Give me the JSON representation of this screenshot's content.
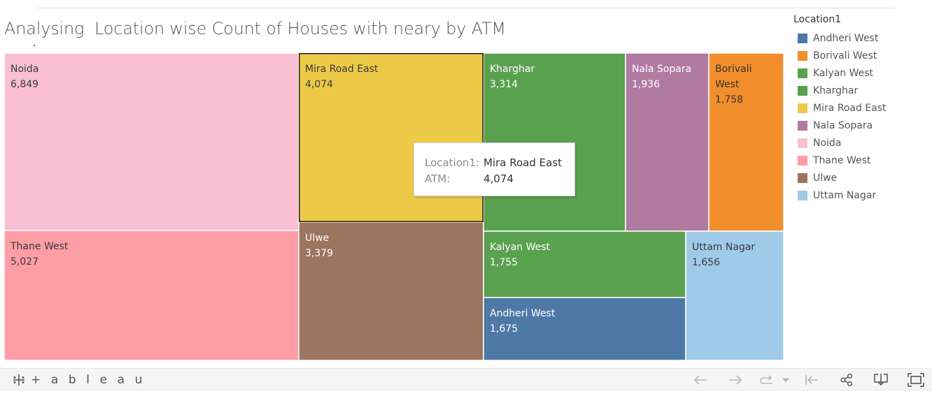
{
  "title": "Analysing  Location wise Count of Houses with neary by ATM",
  "colors": {
    "Andheri West": "#4e79a7",
    "Borivali West": "#f28e2b",
    "Kalyan West": "#59a14f",
    "Kharghar": "#59a14f",
    "Mira Road East": "#edc948",
    "Nala Sopara": "#b07aa1",
    "Noida": "#f9bfd3",
    "Thane West": "#ff9da7",
    "Ulwe": "#9c755f",
    "Uttam Nagar": "#a0cbe8"
  },
  "chart_data": {
    "type": "treemap",
    "title": "Analysing  Location wise Count of Houses with neary by ATM",
    "size_measure": "ATM",
    "color_dimension": "Location1",
    "items": [
      {
        "name": "Noida",
        "value": 6849,
        "label_lines": [
          "Noida"
        ],
        "display": "6,849"
      },
      {
        "name": "Thane West",
        "value": 5027,
        "label_lines": [
          "Thane West"
        ],
        "display": "5,027"
      },
      {
        "name": "Mira Road East",
        "value": 4074,
        "label_lines": [
          "Mira Road East"
        ],
        "display": "4,074",
        "selected": true
      },
      {
        "name": "Ulwe",
        "value": 3379,
        "label_lines": [
          "Ulwe"
        ],
        "display": "3,379"
      },
      {
        "name": "Kharghar",
        "value": 3314,
        "label_lines": [
          "Kharghar"
        ],
        "display": "3,314"
      },
      {
        "name": "Nala Sopara",
        "value": 1936,
        "label_lines": [
          "Nala Sopara"
        ],
        "display": "1,936"
      },
      {
        "name": "Borivali West",
        "value": 1758,
        "label_lines": [
          "Borivali",
          "West"
        ],
        "display": "1,758"
      },
      {
        "name": "Kalyan West",
        "value": 1755,
        "label_lines": [
          "Kalyan West"
        ],
        "display": "1,755"
      },
      {
        "name": "Andheri West",
        "value": 1675,
        "label_lines": [
          "Andheri West"
        ],
        "display": "1,675"
      },
      {
        "name": "Uttam Nagar",
        "value": 1656,
        "label_lines": [
          "Uttam Nagar"
        ],
        "display": "1,656"
      }
    ]
  },
  "tooltip": {
    "key1": "Location1:",
    "val1": "Mira Road East",
    "key2": "ATM:",
    "val2": "4,074"
  },
  "legend": {
    "title": "Location1",
    "items": [
      {
        "label": "Andheri West",
        "color": "#4e79a7"
      },
      {
        "label": "Borivali West",
        "color": "#f28e2b"
      },
      {
        "label": "Kalyan West",
        "color": "#59a14f"
      },
      {
        "label": "Kharghar",
        "color": "#59a14f"
      },
      {
        "label": "Mira Road East",
        "color": "#edc948"
      },
      {
        "label": "Nala Sopara",
        "color": "#b07aa1"
      },
      {
        "label": "Noida",
        "color": "#f9bfd3"
      },
      {
        "label": "Thane West",
        "color": "#ff9da7"
      },
      {
        "label": "Ulwe",
        "color": "#9c755f"
      },
      {
        "label": "Uttam Nagar",
        "color": "#a0cbe8"
      }
    ]
  },
  "toolbar": {
    "brand": "+ a b l e a u",
    "buttons": [
      {
        "name": "undo-icon",
        "enabled": false
      },
      {
        "name": "redo-icon",
        "enabled": false
      },
      {
        "name": "revert-icon",
        "enabled": false
      },
      {
        "name": "revert-dropdown-icon",
        "enabled": false
      },
      {
        "name": "reset-icon",
        "enabled": false
      },
      {
        "name": "share-icon",
        "enabled": true
      },
      {
        "name": "download-icon",
        "enabled": true
      },
      {
        "name": "fullscreen-icon",
        "enabled": true
      }
    ]
  }
}
